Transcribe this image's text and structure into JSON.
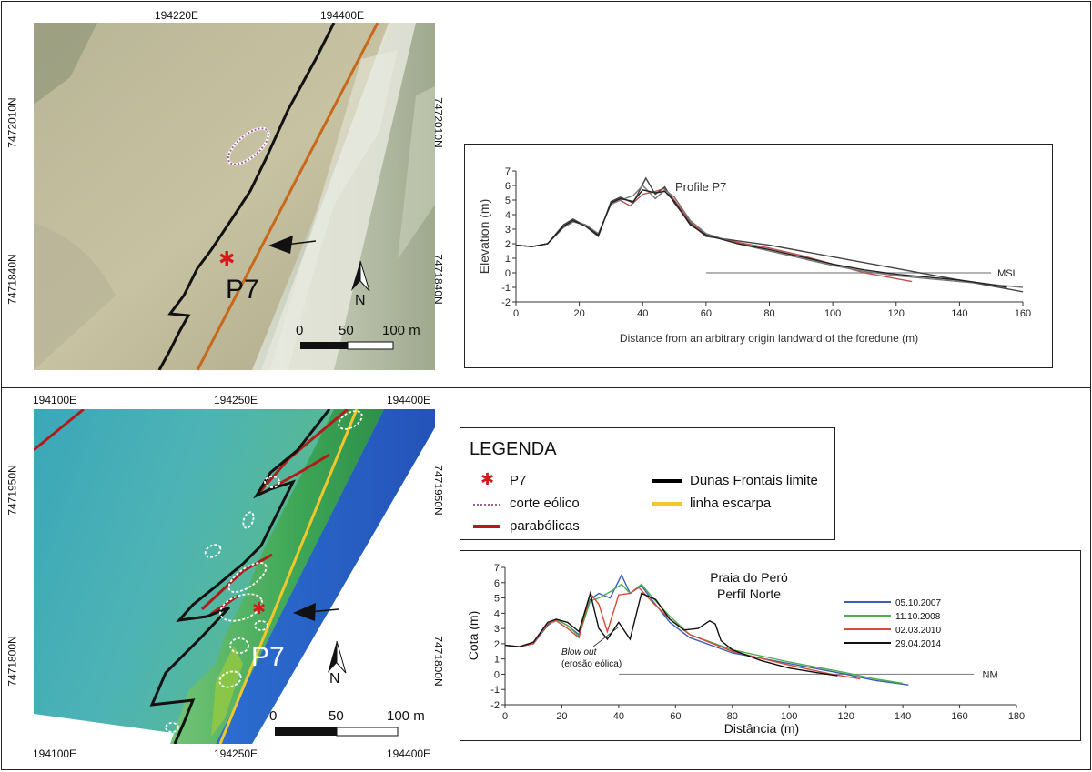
{
  "top_panel": {
    "map": {
      "coords_top": [
        "194220E",
        "194400E"
      ],
      "coords_left": [
        "7472010N",
        "7471840N"
      ],
      "coords_right": [
        "7472010N",
        "7471840N"
      ],
      "profile_label": "P7",
      "north_label": "N",
      "scale_labels": [
        "0",
        "50",
        "100 m"
      ]
    },
    "chart": {
      "title": "Profile P7",
      "ylabel": "Elevation (m)",
      "xlabel": "Distance from an arbitrary origin landward of the foredune (m)",
      "msl_label": "MSL"
    }
  },
  "bottom_panel": {
    "map": {
      "coords_top": [
        "194100E",
        "194250E",
        "194400E"
      ],
      "coords_bottom": [
        "194100E",
        "194250E",
        "194400E"
      ],
      "coords_left": [
        "7471950N",
        "7471800N"
      ],
      "coords_right": [
        "7471950N",
        "7471800N"
      ],
      "profile_label": "P7",
      "north_label": "N",
      "scale_labels": [
        "0",
        "50",
        "100 m"
      ]
    },
    "legend": {
      "title": "LEGENDA",
      "items": [
        {
          "label": "P7",
          "symbol": "star",
          "color": "#d7191c"
        },
        {
          "label": "corte eólico",
          "symbol": "dotted",
          "color": "#a0609a"
        },
        {
          "label": "parabólicas",
          "symbol": "line",
          "color": "#b01c1c"
        },
        {
          "label": "Dunas Frontais limite",
          "symbol": "line",
          "color": "#000000"
        },
        {
          "label": "linha escarpa",
          "symbol": "line",
          "color": "#f2c72b"
        }
      ]
    },
    "chart": {
      "title_line1": "Praia do Peró",
      "title_line2": "Perfil Norte",
      "ylabel": "Cota (m)",
      "xlabel": "Distância (m)",
      "nm_label": "NM",
      "annotation_italic": "Blow out",
      "annotation_plain": "(erosão eólica)"
    }
  },
  "chart_data": [
    {
      "type": "line",
      "title": "Profile P7",
      "xlabel": "Distance from an arbitrary origin landward of the foredune (m)",
      "ylabel": "Elevation (m)",
      "xlim": [
        0,
        160
      ],
      "ylim": [
        -2,
        7
      ],
      "x_ticks": [
        0,
        20,
        40,
        60,
        80,
        100,
        120,
        140,
        160
      ],
      "y_ticks": [
        -2,
        -1,
        0,
        1,
        2,
        3,
        4,
        5,
        6,
        7
      ],
      "grid": false,
      "reference_line": {
        "label": "MSL",
        "y": 0
      },
      "series": [
        {
          "color": "#c0504d",
          "x": [
            0,
            5,
            10,
            15,
            18,
            22,
            26,
            30,
            32,
            36,
            40,
            44,
            47,
            50,
            55,
            60,
            70,
            80,
            90,
            100,
            110,
            120,
            125
          ],
          "y": [
            1.9,
            1.8,
            2.0,
            3.2,
            3.6,
            3.3,
            2.6,
            4.8,
            5.1,
            4.6,
            5.4,
            5.6,
            5.8,
            5.0,
            3.5,
            2.6,
            2.1,
            1.7,
            1.2,
            0.6,
            0.0,
            -0.4,
            -0.6
          ]
        },
        {
          "color": "#444444",
          "x": [
            0,
            5,
            10,
            15,
            18,
            22,
            26,
            30,
            33,
            37,
            41,
            44,
            47,
            50,
            55,
            60,
            70,
            80,
            90,
            100,
            110,
            120,
            130,
            140,
            150,
            160
          ],
          "y": [
            1.9,
            1.8,
            2.0,
            3.3,
            3.7,
            3.2,
            2.5,
            4.9,
            5.2,
            4.8,
            6.5,
            5.4,
            5.9,
            4.8,
            3.4,
            2.5,
            2.2,
            1.9,
            1.5,
            1.1,
            0.7,
            0.3,
            -0.1,
            -0.5,
            -0.9,
            -1.3
          ]
        },
        {
          "color": "#777777",
          "x": [
            0,
            5,
            10,
            15,
            18,
            22,
            26,
            30,
            33,
            37,
            40,
            44,
            47,
            50,
            55,
            60,
            70,
            80,
            90,
            100,
            110,
            120,
            130,
            140,
            150,
            160
          ],
          "y": [
            1.9,
            1.8,
            2.0,
            3.1,
            3.5,
            3.3,
            2.7,
            4.7,
            5.0,
            5.3,
            6.0,
            5.1,
            5.7,
            5.2,
            3.6,
            2.7,
            2.0,
            1.5,
            1.0,
            0.5,
            0.1,
            -0.2,
            -0.4,
            -0.6,
            -0.8,
            -1.0
          ]
        },
        {
          "color": "#222222",
          "x": [
            0,
            5,
            10,
            15,
            18,
            22,
            26,
            30,
            33,
            37,
            40,
            44,
            47,
            50,
            55,
            60,
            70,
            80,
            90,
            100,
            110,
            120,
            130,
            140,
            150,
            155
          ],
          "y": [
            1.9,
            1.8,
            2.0,
            3.2,
            3.6,
            3.2,
            2.6,
            4.8,
            5.1,
            4.9,
            5.7,
            5.5,
            5.6,
            4.9,
            3.3,
            2.6,
            2.0,
            1.6,
            1.1,
            0.6,
            0.2,
            -0.1,
            -0.3,
            -0.5,
            -0.8,
            -1.0
          ]
        }
      ]
    },
    {
      "type": "line",
      "title": "Praia do Peró Perfil Norte",
      "xlabel": "Distância (m)",
      "ylabel": "Cota (m)",
      "xlim": [
        0,
        180
      ],
      "ylim": [
        -2,
        7
      ],
      "x_ticks": [
        0,
        20,
        40,
        60,
        80,
        100,
        120,
        140,
        160,
        180
      ],
      "y_ticks": [
        -2,
        -1,
        0,
        1,
        2,
        3,
        4,
        5,
        6,
        7
      ],
      "grid": false,
      "legend_position": "right",
      "reference_line": {
        "label": "NM",
        "y": 0
      },
      "series": [
        {
          "name": "05.10.2007",
          "color": "#3a5fb8",
          "x": [
            0,
            5,
            10,
            15,
            18,
            22,
            26,
            30,
            33,
            37,
            41,
            44,
            48,
            52,
            58,
            65,
            80,
            100,
            120,
            130,
            142
          ],
          "y": [
            1.9,
            1.8,
            2.0,
            3.2,
            3.6,
            3.2,
            2.6,
            4.9,
            5.3,
            5.0,
            6.5,
            5.3,
            5.8,
            4.8,
            3.4,
            2.4,
            1.4,
            0.7,
            0.0,
            -0.4,
            -0.7
          ]
        },
        {
          "name": "11.10.2008",
          "color": "#4caf50",
          "x": [
            0,
            5,
            10,
            15,
            18,
            22,
            26,
            30,
            33,
            37,
            41,
            44,
            48,
            52,
            58,
            65,
            80,
            100,
            120,
            130,
            140
          ],
          "y": [
            1.9,
            1.8,
            2.0,
            3.3,
            3.6,
            3.2,
            2.5,
            4.8,
            5.0,
            5.4,
            5.9,
            5.3,
            5.9,
            5.0,
            3.8,
            2.6,
            1.6,
            0.8,
            0.1,
            -0.3,
            -0.6
          ]
        },
        {
          "name": "02.03.2010",
          "color": "#d94a3a",
          "x": [
            0,
            5,
            10,
            15,
            18,
            22,
            26,
            30,
            33,
            36,
            40,
            44,
            47,
            52,
            58,
            65,
            80,
            100,
            115,
            125
          ],
          "y": [
            1.9,
            1.8,
            2.0,
            3.3,
            3.5,
            3.0,
            2.4,
            5.3,
            4.6,
            2.8,
            5.2,
            5.3,
            5.7,
            4.7,
            3.6,
            2.6,
            1.5,
            0.6,
            0.0,
            -0.3
          ]
        },
        {
          "name": "29.04.2014",
          "color": "#111111",
          "x": [
            0,
            5,
            10,
            15,
            18,
            22,
            26,
            30,
            33,
            36,
            40,
            44,
            48,
            53,
            58,
            63,
            68,
            72,
            74,
            76,
            80,
            90,
            100,
            110,
            117
          ],
          "y": [
            1.9,
            1.8,
            2.1,
            3.4,
            3.6,
            3.4,
            2.8,
            5.3,
            3.0,
            2.3,
            3.4,
            2.3,
            5.3,
            4.9,
            3.6,
            2.9,
            3.0,
            3.5,
            3.3,
            2.2,
            1.6,
            0.9,
            0.4,
            0.1,
            -0.1
          ]
        }
      ]
    }
  ]
}
